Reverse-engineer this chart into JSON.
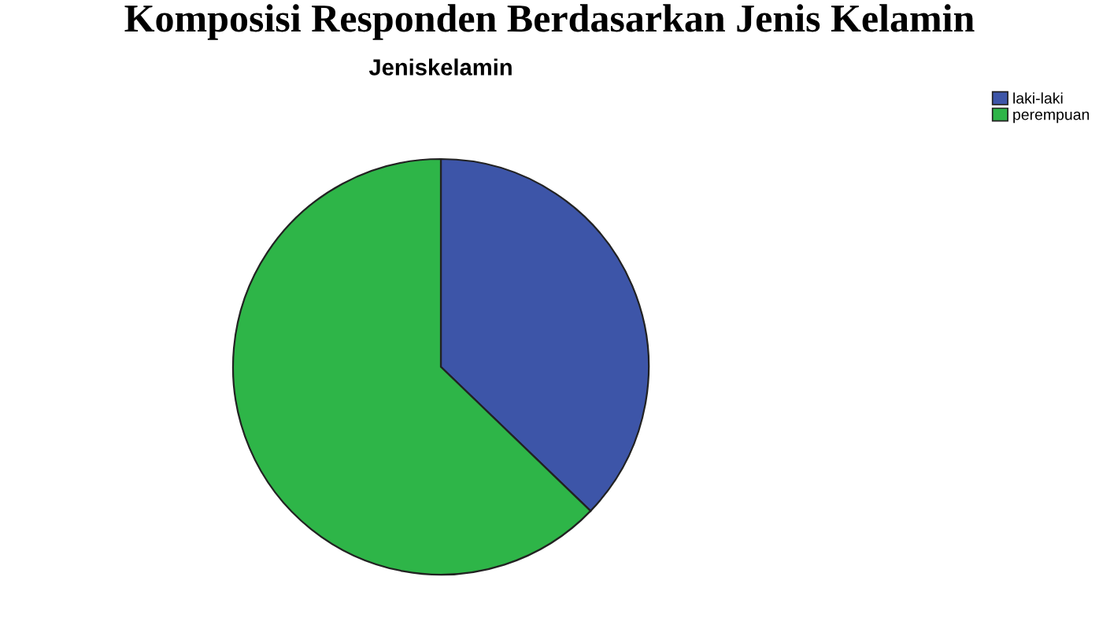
{
  "chart_data": {
    "type": "pie",
    "title": "Komposisi Responden Berdasarkan Jenis Kelamin",
    "subtitle": "Jeniskelamin",
    "categories": [
      "laki-laki",
      "perempuan"
    ],
    "values": [
      37.2,
      62.8
    ],
    "colors": [
      "#3d55a8",
      "#2eb548"
    ],
    "legend": "top right"
  }
}
